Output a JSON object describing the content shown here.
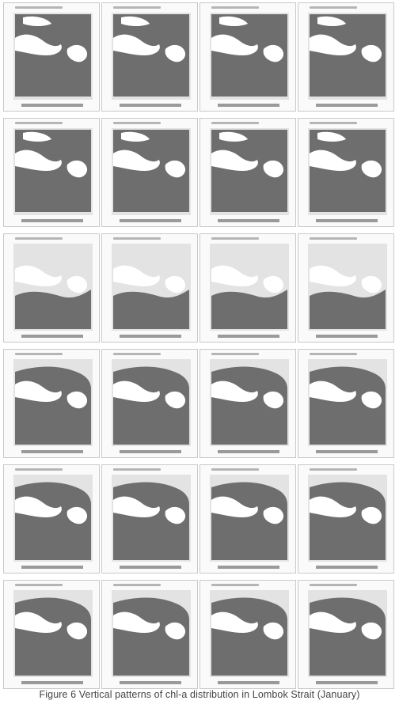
{
  "figure": {
    "caption": "Figure 6 Vertical patterns of chl-a distribution in Lombok Strait (January)",
    "rows": 6,
    "cols": 4,
    "colors": {
      "panel_bg": "#fafafa",
      "sea_fill": "#6e6e6e",
      "land_fill": "#ffffff",
      "hatch": "#cfcfcf",
      "frame": "#c9c9c9",
      "colorbar": "#9a9a9a",
      "header_text": "#b5b5b5"
    }
  }
}
